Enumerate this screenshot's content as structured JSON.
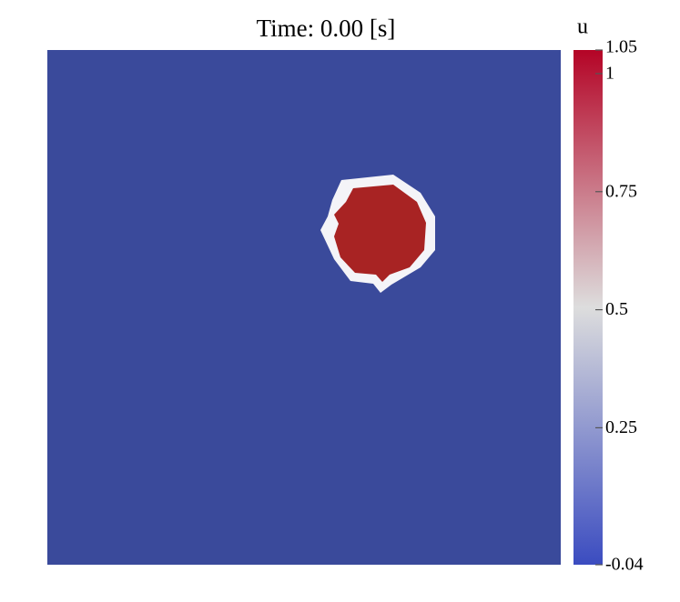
{
  "chart_data": {
    "type": "field",
    "title": "Time: 0.00 [s]",
    "colorbar_label": "u",
    "clim": [
      -0.04,
      1.05
    ],
    "cticks": [
      -0.04,
      0.25,
      0.5,
      0.75,
      1,
      1.05
    ],
    "colormap": [
      "#3b4cc0",
      "#dddddd",
      "#b40426"
    ]
  }
}
